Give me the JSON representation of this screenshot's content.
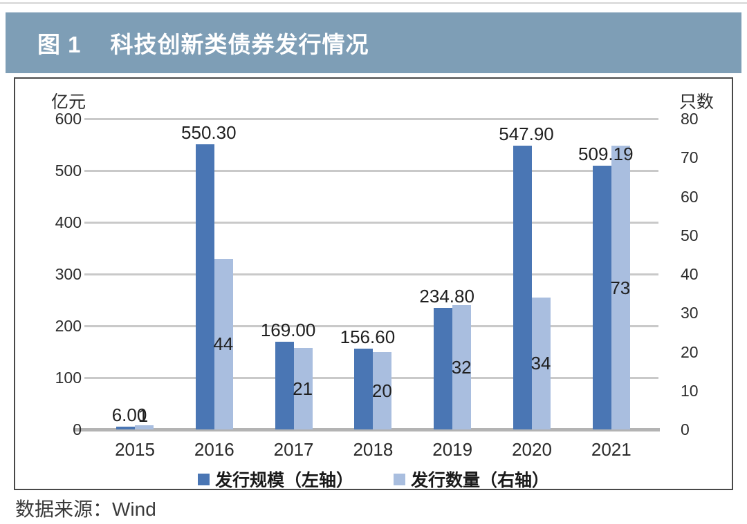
{
  "header": {
    "figure_label": "图 1",
    "title": "科技创新类债券发行情况"
  },
  "footer": {
    "source": "数据来源：Wind"
  },
  "colors": {
    "header_band": "#7e9eb6",
    "scale_series": "#4a76b4",
    "count_series": "#a9bedf",
    "gridline": "#c9c9c9",
    "baseline": "#b3b3b3"
  },
  "chart_data": {
    "type": "bar",
    "categories": [
      "2015",
      "2016",
      "2017",
      "2018",
      "2019",
      "2020",
      "2021"
    ],
    "series": [
      {
        "name": "发行规模（左轴）",
        "axis": "left",
        "color": "#4a76b4",
        "values": [
          6.0,
          550.3,
          169.0,
          156.6,
          234.8,
          547.9,
          509.19
        ],
        "labels": [
          "6.00",
          "550.30",
          "169.00",
          "156.60",
          "234.80",
          "547.90",
          "509.19"
        ]
      },
      {
        "name": "发行数量（右轴）",
        "axis": "right",
        "color": "#a9bedf",
        "values": [
          1,
          44,
          21,
          20,
          32,
          34,
          73
        ],
        "labels": [
          "1",
          "44",
          "21",
          "20",
          "32",
          "34",
          "73"
        ]
      }
    ],
    "left_axis": {
      "title": "亿元",
      "min": 0,
      "max": 600,
      "step": 100,
      "ticks": [
        0,
        100,
        200,
        300,
        400,
        500,
        600
      ]
    },
    "right_axis": {
      "title": "只数",
      "min": 0,
      "max": 80,
      "step": 10,
      "ticks": [
        0,
        10,
        20,
        30,
        40,
        50,
        60,
        70,
        80
      ]
    },
    "grid": true,
    "legend_position": "bottom"
  }
}
